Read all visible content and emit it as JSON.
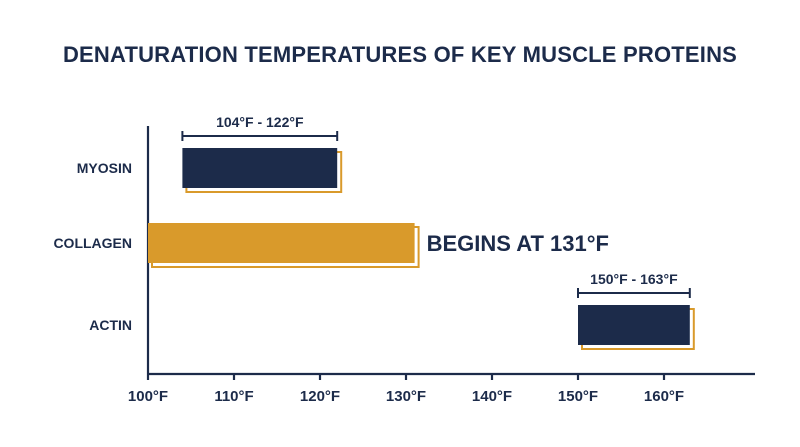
{
  "chart_data": {
    "type": "bar",
    "orientation": "horizontal",
    "title": "DENATURATION TEMPERATURES OF KEY MUSCLE PROTEINS",
    "categories": [
      "MYOSIN",
      "COLLAGEN",
      "ACTIN"
    ],
    "bars": [
      {
        "category": "MYOSIN",
        "start": 104,
        "end": 122,
        "label": "104°F - 122°F",
        "label_position": "above",
        "color": "#1c2b4a",
        "outline_color": "#d99a2b"
      },
      {
        "category": "COLLAGEN",
        "start": 100,
        "end": 131,
        "label": "BEGINS AT 131°F",
        "label_position": "right",
        "color": "#d99a2b",
        "outline_color": "#d99a2b"
      },
      {
        "category": "ACTIN",
        "start": 150,
        "end": 163,
        "label": "150°F - 163°F",
        "label_position": "above",
        "color": "#1c2b4a",
        "outline_color": "#d99a2b"
      }
    ],
    "xlim": [
      100,
      165
    ],
    "x_ticks": [
      100,
      110,
      120,
      130,
      140,
      150,
      160
    ],
    "x_tick_labels": [
      "100°F",
      "110°F",
      "120°F",
      "130°F",
      "140°F",
      "150°F",
      "160°F"
    ],
    "xlabel": "",
    "ylabel": "",
    "grid": false,
    "legend": "none"
  }
}
